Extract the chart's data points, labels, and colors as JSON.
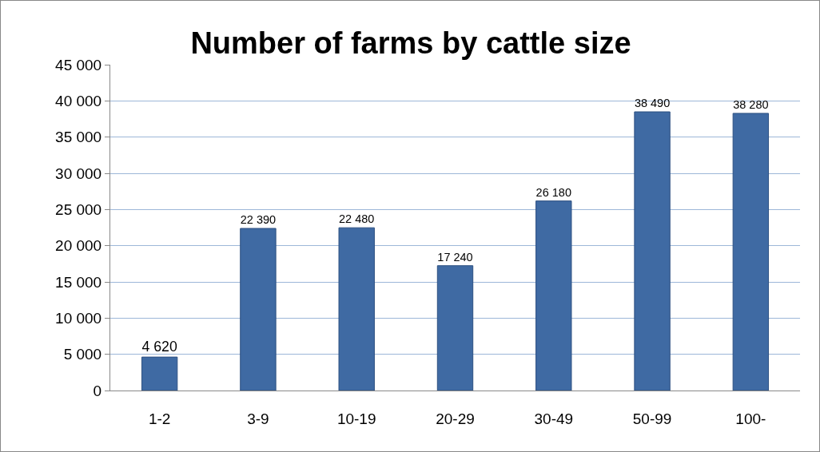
{
  "chart_data": {
    "type": "bar",
    "title": "Number of farms by cattle size",
    "categories": [
      "1-2",
      "3-9",
      "10-19",
      "20-29",
      "30-49",
      "50-99",
      "100-"
    ],
    "values": [
      4620,
      22390,
      22480,
      17240,
      26180,
      38490,
      38280
    ],
    "value_labels": [
      "4 620",
      "22 390",
      "22 480",
      "17 240",
      "26 180",
      "38 490",
      "38 280"
    ],
    "color": "#3f6aa3",
    "ylim": [
      0,
      45000
    ],
    "yticks": [
      {
        "value": 0,
        "label": "0"
      },
      {
        "value": 5000,
        "label": "5 000"
      },
      {
        "value": 10000,
        "label": "10 000"
      },
      {
        "value": 15000,
        "label": "15 000"
      },
      {
        "value": 20000,
        "label": "20 000"
      },
      {
        "value": 25000,
        "label": "25 000"
      },
      {
        "value": 30000,
        "label": "30 000"
      },
      {
        "value": 35000,
        "label": "35 000"
      },
      {
        "value": 40000,
        "label": "40 000"
      },
      {
        "value": 45000,
        "label": "45 000"
      }
    ],
    "grid": "y",
    "legend": false
  }
}
